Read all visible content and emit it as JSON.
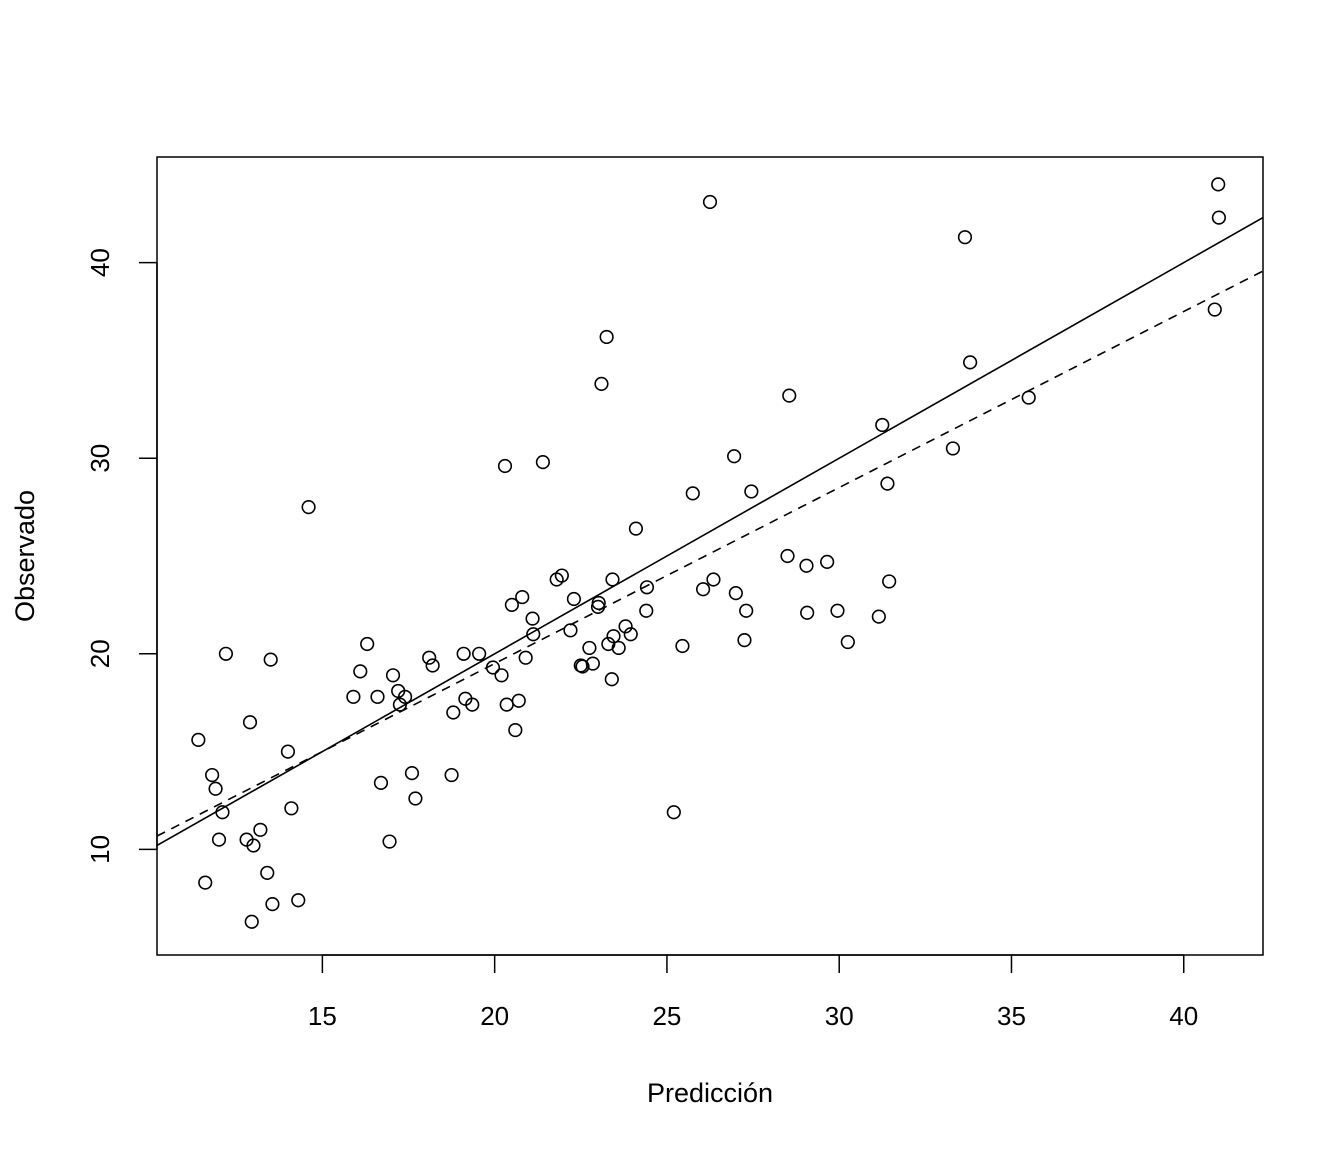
{
  "chart_data": {
    "type": "scatter",
    "title": "",
    "xlabel": "Predicción",
    "ylabel": "Observado",
    "xlim": [
      10.2,
      42.3
    ],
    "ylim": [
      4.6,
      45.4
    ],
    "x_ticks": [
      15,
      20,
      25,
      30,
      35,
      40
    ],
    "y_ticks": [
      10,
      20,
      30,
      40
    ],
    "grid": false,
    "legend": "none",
    "points": [
      [
        11.4,
        15.6
      ],
      [
        11.6,
        8.3
      ],
      [
        11.8,
        13.8
      ],
      [
        11.9,
        13.1
      ],
      [
        12.0,
        10.5
      ],
      [
        12.1,
        11.9
      ],
      [
        12.2,
        20.0
      ],
      [
        12.8,
        10.5
      ],
      [
        12.9,
        16.5
      ],
      [
        12.95,
        6.3
      ],
      [
        13.0,
        10.2
      ],
      [
        13.2,
        11.0
      ],
      [
        13.4,
        8.8
      ],
      [
        13.5,
        19.7
      ],
      [
        13.55,
        7.2
      ],
      [
        14.0,
        15.0
      ],
      [
        14.1,
        12.1
      ],
      [
        14.3,
        7.4
      ],
      [
        14.6,
        27.5
      ],
      [
        15.9,
        17.8
      ],
      [
        16.1,
        19.1
      ],
      [
        16.3,
        20.5
      ],
      [
        16.6,
        17.8
      ],
      [
        16.7,
        13.4
      ],
      [
        16.95,
        10.4
      ],
      [
        17.05,
        18.9
      ],
      [
        17.2,
        18.1
      ],
      [
        17.25,
        17.4
      ],
      [
        17.4,
        17.8
      ],
      [
        17.6,
        13.9
      ],
      [
        17.7,
        12.6
      ],
      [
        18.1,
        19.8
      ],
      [
        18.2,
        19.4
      ],
      [
        18.75,
        13.8
      ],
      [
        18.8,
        17.0
      ],
      [
        19.1,
        20.0
      ],
      [
        19.15,
        17.7
      ],
      [
        19.35,
        17.4
      ],
      [
        19.55,
        20.0
      ],
      [
        19.95,
        19.3
      ],
      [
        20.2,
        18.9
      ],
      [
        20.3,
        29.6
      ],
      [
        20.35,
        17.4
      ],
      [
        20.5,
        22.5
      ],
      [
        20.6,
        16.1
      ],
      [
        20.7,
        17.6
      ],
      [
        20.8,
        22.9
      ],
      [
        20.9,
        19.8
      ],
      [
        21.1,
        21.8
      ],
      [
        21.12,
        21.0
      ],
      [
        21.4,
        29.8
      ],
      [
        21.8,
        23.8
      ],
      [
        21.95,
        24.0
      ],
      [
        22.2,
        21.2
      ],
      [
        22.3,
        22.8
      ],
      [
        22.5,
        19.4
      ],
      [
        22.55,
        19.35
      ],
      [
        22.75,
        20.3
      ],
      [
        22.85,
        19.5
      ],
      [
        23.0,
        22.4
      ],
      [
        23.02,
        22.6
      ],
      [
        23.1,
        33.8
      ],
      [
        23.25,
        36.2
      ],
      [
        23.3,
        20.5
      ],
      [
        23.4,
        18.7
      ],
      [
        23.42,
        23.8
      ],
      [
        23.45,
        20.9
      ],
      [
        23.6,
        20.3
      ],
      [
        23.8,
        21.4
      ],
      [
        23.95,
        21.0
      ],
      [
        24.1,
        26.4
      ],
      [
        24.4,
        22.2
      ],
      [
        24.42,
        23.4
      ],
      [
        25.2,
        11.9
      ],
      [
        25.45,
        20.4
      ],
      [
        25.75,
        28.2
      ],
      [
        26.05,
        23.3
      ],
      [
        26.25,
        43.1
      ],
      [
        26.35,
        23.8
      ],
      [
        26.95,
        30.1
      ],
      [
        27.0,
        23.1
      ],
      [
        27.25,
        20.7
      ],
      [
        27.3,
        22.2
      ],
      [
        27.45,
        28.3
      ],
      [
        28.5,
        25.0
      ],
      [
        28.55,
        33.2
      ],
      [
        29.05,
        24.5
      ],
      [
        29.07,
        22.1
      ],
      [
        29.65,
        24.7
      ],
      [
        29.95,
        22.2
      ],
      [
        30.25,
        20.6
      ],
      [
        31.15,
        21.9
      ],
      [
        31.25,
        31.7
      ],
      [
        31.4,
        28.7
      ],
      [
        31.45,
        23.7
      ],
      [
        33.3,
        30.5
      ],
      [
        33.65,
        41.3
      ],
      [
        33.8,
        34.9
      ],
      [
        35.5,
        33.1
      ],
      [
        40.9,
        37.6
      ],
      [
        41.0,
        44.0
      ],
      [
        41.02,
        42.3
      ]
    ],
    "lines": [
      {
        "style": "solid",
        "intercept": 0.0,
        "slope": 1.0
      },
      {
        "style": "dashed",
        "intercept": 1.5,
        "slope": 0.9
      }
    ]
  }
}
